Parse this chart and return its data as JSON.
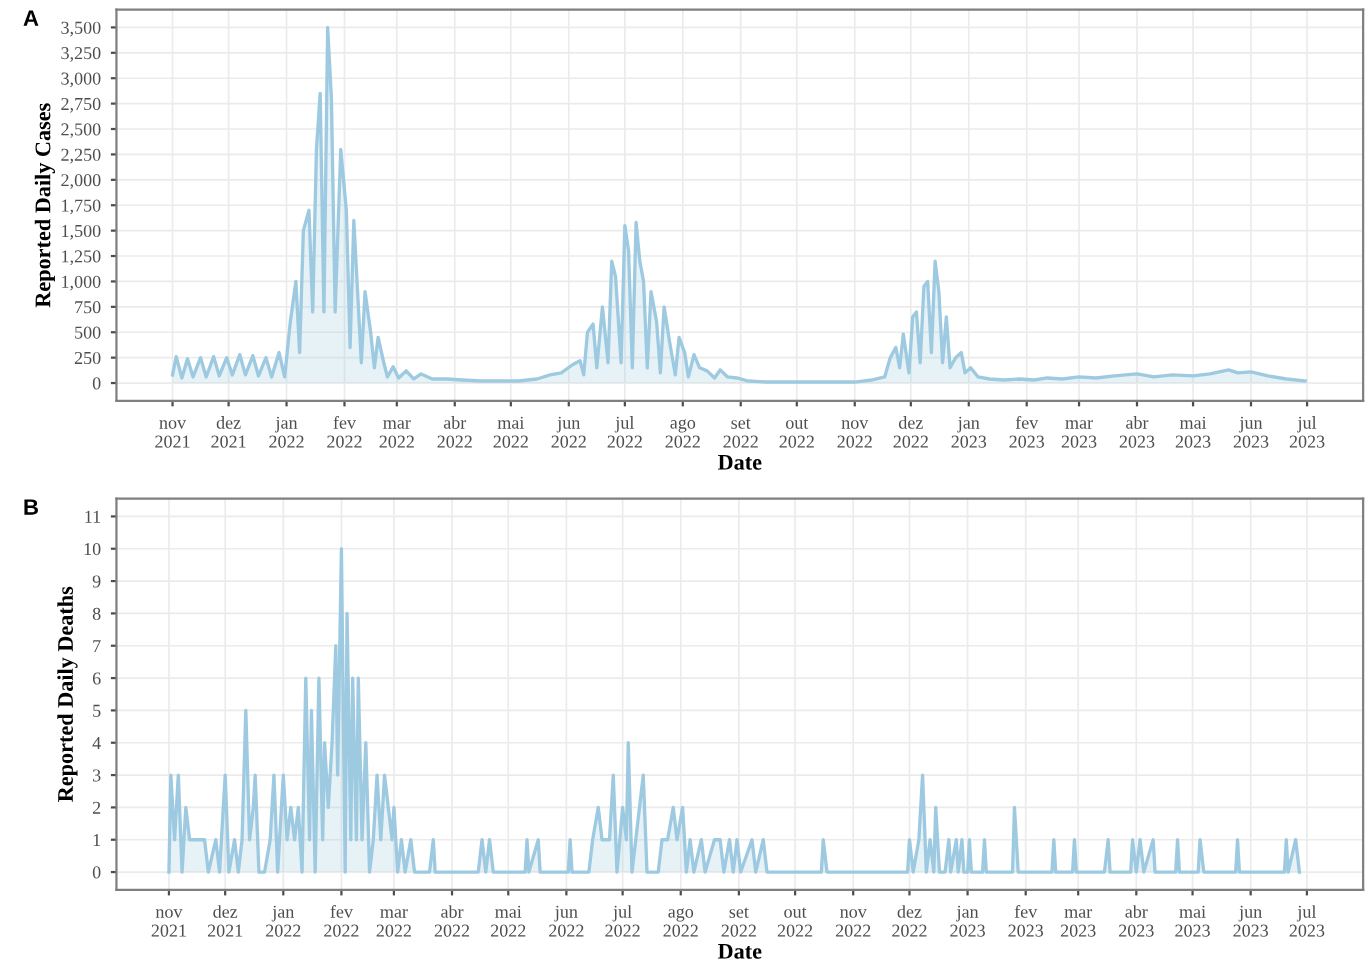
{
  "chart_data": [
    {
      "type": "area",
      "title": "A",
      "xlabel": "Date",
      "ylabel": "Reported Daily Cases",
      "grid": true,
      "xlim": [
        "2021-10-02",
        "2023-07-31"
      ],
      "ylim": [
        -175,
        3675
      ],
      "xticks": [
        {
          "value": "2021-11-01",
          "label": "nov\n2021"
        },
        {
          "value": "2021-12-01",
          "label": "dez\n2021"
        },
        {
          "value": "2022-01-01",
          "label": "jan\n2022"
        },
        {
          "value": "2022-02-01",
          "label": "fev\n2022"
        },
        {
          "value": "2022-03-01",
          "label": "mar\n2022"
        },
        {
          "value": "2022-04-01",
          "label": "abr\n2022"
        },
        {
          "value": "2022-05-01",
          "label": "mai\n2022"
        },
        {
          "value": "2022-06-01",
          "label": "jun\n2022"
        },
        {
          "value": "2022-07-01",
          "label": "jul\n2022"
        },
        {
          "value": "2022-08-01",
          "label": "ago\n2022"
        },
        {
          "value": "2022-09-01",
          "label": "set\n2022"
        },
        {
          "value": "2022-10-01",
          "label": "out\n2022"
        },
        {
          "value": "2022-11-01",
          "label": "nov\n2022"
        },
        {
          "value": "2022-12-01",
          "label": "dez\n2022"
        },
        {
          "value": "2023-01-01",
          "label": "jan\n2023"
        },
        {
          "value": "2023-02-01",
          "label": "fev\n2023"
        },
        {
          "value": "2023-03-01",
          "label": "mar\n2023"
        },
        {
          "value": "2023-04-01",
          "label": "abr\n2023"
        },
        {
          "value": "2023-05-01",
          "label": "mai\n2023"
        },
        {
          "value": "2023-06-01",
          "label": "jun\n2023"
        },
        {
          "value": "2023-07-01",
          "label": "jul\n2023"
        }
      ],
      "yticks": [
        0,
        250,
        500,
        750,
        {
          "value": 1000,
          "label": "1,000"
        },
        {
          "value": 1250,
          "label": "1,250"
        },
        {
          "value": 1500,
          "label": "1,500"
        },
        {
          "value": 1750,
          "label": "1,750"
        },
        {
          "value": 2000,
          "label": "2,000"
        },
        {
          "value": 2250,
          "label": "2,250"
        },
        {
          "value": 2500,
          "label": "2,500"
        },
        {
          "value": 2750,
          "label": "2,750"
        },
        {
          "value": 3000,
          "label": "3,000"
        },
        {
          "value": 3250,
          "label": "3,250"
        },
        {
          "value": 3500,
          "label": "3,500"
        }
      ],
      "series": [
        {
          "color": "#9ecae1",
          "x": [
            "2021-11-01",
            "2021-11-03",
            "2021-11-06",
            "2021-11-09",
            "2021-11-12",
            "2021-11-16",
            "2021-11-19",
            "2021-11-23",
            "2021-11-26",
            "2021-11-30",
            "2021-12-03",
            "2021-12-07",
            "2021-12-10",
            "2021-12-14",
            "2021-12-17",
            "2021-12-21",
            "2021-12-24",
            "2021-12-28",
            "2021-12-31",
            "2022-01-03",
            "2022-01-06",
            "2022-01-08",
            "2022-01-10",
            "2022-01-13",
            "2022-01-15",
            "2022-01-17",
            "2022-01-19",
            "2022-01-21",
            "2022-01-23",
            "2022-01-25",
            "2022-01-27",
            "2022-01-30",
            "2022-02-02",
            "2022-02-04",
            "2022-02-06",
            "2022-02-08",
            "2022-02-10",
            "2022-02-12",
            "2022-02-15",
            "2022-02-17",
            "2022-02-19",
            "2022-02-22",
            "2022-02-24",
            "2022-02-27",
            "2022-03-02",
            "2022-03-06",
            "2022-03-10",
            "2022-03-14",
            "2022-03-20",
            "2022-03-28",
            "2022-04-05",
            "2022-04-15",
            "2022-04-25",
            "2022-05-05",
            "2022-05-15",
            "2022-05-22",
            "2022-05-28",
            "2022-06-03",
            "2022-06-07",
            "2022-06-09",
            "2022-06-11",
            "2022-06-14",
            "2022-06-16",
            "2022-06-19",
            "2022-06-22",
            "2022-06-24",
            "2022-06-26",
            "2022-06-29",
            "2022-07-01",
            "2022-07-03",
            "2022-07-05",
            "2022-07-07",
            "2022-07-09",
            "2022-07-11",
            "2022-07-13",
            "2022-07-15",
            "2022-07-18",
            "2022-07-20",
            "2022-07-22",
            "2022-07-25",
            "2022-07-28",
            "2022-07-30",
            "2022-08-02",
            "2022-08-04",
            "2022-08-07",
            "2022-08-10",
            "2022-08-14",
            "2022-08-18",
            "2022-08-21",
            "2022-08-25",
            "2022-08-30",
            "2022-09-05",
            "2022-09-15",
            "2022-10-01",
            "2022-10-15",
            "2022-11-01",
            "2022-11-10",
            "2022-11-17",
            "2022-11-20",
            "2022-11-23",
            "2022-11-25",
            "2022-11-27",
            "2022-11-30",
            "2022-12-02",
            "2022-12-04",
            "2022-12-06",
            "2022-12-08",
            "2022-12-10",
            "2022-12-12",
            "2022-12-14",
            "2022-12-16",
            "2022-12-18",
            "2022-12-20",
            "2022-12-22",
            "2022-12-25",
            "2022-12-28",
            "2022-12-30",
            "2023-01-02",
            "2023-01-06",
            "2023-01-12",
            "2023-01-20",
            "2023-01-28",
            "2023-02-05",
            "2023-02-12",
            "2023-02-20",
            "2023-03-01",
            "2023-03-10",
            "2023-03-20",
            "2023-04-01",
            "2023-04-10",
            "2023-04-20",
            "2023-05-01",
            "2023-05-10",
            "2023-05-20",
            "2023-05-25",
            "2023-06-01",
            "2023-06-10",
            "2023-06-20",
            "2023-06-30"
          ],
          "values": [
            80,
            260,
            50,
            240,
            60,
            250,
            60,
            260,
            70,
            250,
            80,
            280,
            80,
            270,
            70,
            250,
            60,
            300,
            60,
            600,
            1000,
            300,
            1500,
            1700,
            700,
            2300,
            2850,
            700,
            3500,
            2800,
            700,
            2300,
            1700,
            350,
            1600,
            900,
            200,
            900,
            500,
            150,
            450,
            200,
            60,
            160,
            50,
            120,
            40,
            90,
            40,
            40,
            30,
            20,
            20,
            20,
            40,
            80,
            100,
            180,
            220,
            80,
            500,
            580,
            150,
            750,
            200,
            1200,
            1050,
            200,
            1550,
            1300,
            150,
            1580,
            1200,
            1000,
            150,
            900,
            600,
            100,
            750,
            400,
            80,
            450,
            300,
            60,
            280,
            150,
            120,
            50,
            130,
            60,
            50,
            20,
            10,
            10,
            10,
            10,
            30,
            60,
            250,
            350,
            150,
            480,
            100,
            650,
            700,
            200,
            950,
            1000,
            300,
            1200,
            900,
            200,
            650,
            150,
            250,
            300,
            100,
            150,
            60,
            40,
            30,
            40,
            30,
            50,
            40,
            60,
            50,
            70,
            90,
            60,
            80,
            70,
            90,
            130,
            100,
            110,
            70,
            40,
            20
          ]
        }
      ]
    },
    {
      "type": "area",
      "title": "B",
      "xlabel": "Date",
      "ylabel": "Reported Daily Deaths",
      "grid": true,
      "xlim": [
        "2021-10-04",
        "2023-07-31"
      ],
      "ylim": [
        -0.55,
        11.55
      ],
      "xticks": [
        {
          "value": "2021-11-01",
          "label": "nov\n2021"
        },
        {
          "value": "2021-12-01",
          "label": "dez\n2021"
        },
        {
          "value": "2022-01-01",
          "label": "jan\n2022"
        },
        {
          "value": "2022-02-01",
          "label": "fev\n2022"
        },
        {
          "value": "2022-03-01",
          "label": "mar\n2022"
        },
        {
          "value": "2022-04-01",
          "label": "abr\n2022"
        },
        {
          "value": "2022-05-01",
          "label": "mai\n2022"
        },
        {
          "value": "2022-06-01",
          "label": "jun\n2022"
        },
        {
          "value": "2022-07-01",
          "label": "jul\n2022"
        },
        {
          "value": "2022-08-01",
          "label": "ago\n2022"
        },
        {
          "value": "2022-09-01",
          "label": "set\n2022"
        },
        {
          "value": "2022-10-01",
          "label": "out\n2022"
        },
        {
          "value": "2022-11-01",
          "label": "nov\n2022"
        },
        {
          "value": "2022-12-01",
          "label": "dez\n2022"
        },
        {
          "value": "2023-01-01",
          "label": "jan\n2023"
        },
        {
          "value": "2023-02-01",
          "label": "fev\n2023"
        },
        {
          "value": "2023-03-01",
          "label": "mar\n2023"
        },
        {
          "value": "2023-04-01",
          "label": "abr\n2023"
        },
        {
          "value": "2023-05-01",
          "label": "mai\n2023"
        },
        {
          "value": "2023-06-01",
          "label": "jun\n2023"
        },
        {
          "value": "2023-07-01",
          "label": "jul\n2023"
        }
      ],
      "yticks": [
        0,
        1,
        2,
        3,
        4,
        5,
        6,
        7,
        8,
        9,
        10,
        11
      ],
      "series": [
        {
          "color": "#9ecae1",
          "x": [
            "2021-11-01",
            "2021-11-02",
            "2021-11-04",
            "2021-11-06",
            "2021-11-08",
            "2021-11-10",
            "2021-11-12",
            "2021-11-20",
            "2021-11-22",
            "2021-11-26",
            "2021-11-28",
            "2021-12-01",
            "2021-12-03",
            "2021-12-06",
            "2021-12-08",
            "2021-12-10",
            "2021-12-12",
            "2021-12-14",
            "2021-12-16",
            "2021-12-17",
            "2021-12-19",
            "2021-12-22",
            "2021-12-25",
            "2021-12-27",
            "2021-12-29",
            "2022-01-01",
            "2022-01-03",
            "2022-01-05",
            "2022-01-07",
            "2022-01-09",
            "2022-01-11",
            "2022-01-13",
            "2022-01-15",
            "2022-01-16",
            "2022-01-18",
            "2022-01-20",
            "2022-01-22",
            "2022-01-23",
            "2022-01-25",
            "2022-01-27",
            "2022-01-29",
            "2022-01-30",
            "2022-02-01",
            "2022-02-03",
            "2022-02-04",
            "2022-02-06",
            "2022-02-07",
            "2022-02-09",
            "2022-02-10",
            "2022-02-12",
            "2022-02-14",
            "2022-02-16",
            "2022-02-18",
            "2022-02-20",
            "2022-02-22",
            "2022-02-24",
            "2022-02-26",
            "2022-02-28",
            "2022-03-01",
            "2022-03-03",
            "2022-03-05",
            "2022-03-07",
            "2022-03-10",
            "2022-03-12",
            "2022-03-20",
            "2022-03-22",
            "2022-03-23",
            "2022-04-15",
            "2022-04-17",
            "2022-04-19",
            "2022-04-21",
            "2022-04-23",
            "2022-05-10",
            "2022-05-11",
            "2022-05-12",
            "2022-05-17",
            "2022-05-18",
            "2022-06-02",
            "2022-06-03",
            "2022-06-04",
            "2022-06-13",
            "2022-06-15",
            "2022-06-18",
            "2022-06-20",
            "2022-06-24",
            "2022-06-26",
            "2022-06-28",
            "2022-07-01",
            "2022-07-03",
            "2022-07-04",
            "2022-07-06",
            "2022-07-08",
            "2022-07-12",
            "2022-07-14",
            "2022-07-20",
            "2022-07-22",
            "2022-07-25",
            "2022-07-28",
            "2022-07-30",
            "2022-08-02",
            "2022-08-04",
            "2022-08-06",
            "2022-08-08",
            "2022-08-12",
            "2022-08-14",
            "2022-08-19",
            "2022-08-22",
            "2022-08-24",
            "2022-08-27",
            "2022-08-29",
            "2022-08-31",
            "2022-09-02",
            "2022-09-08",
            "2022-09-10",
            "2022-09-14",
            "2022-09-16",
            "2022-10-15",
            "2022-10-16",
            "2022-10-18",
            "2022-11-30",
            "2022-12-01",
            "2022-12-03",
            "2022-12-06",
            "2022-12-08",
            "2022-12-10",
            "2022-12-12",
            "2022-12-14",
            "2022-12-15",
            "2022-12-17",
            "2022-12-20",
            "2022-12-22",
            "2022-12-23",
            "2022-12-26",
            "2022-12-27",
            "2022-12-29",
            "2022-12-30",
            "2023-01-01",
            "2023-01-02",
            "2023-01-03",
            "2023-01-09",
            "2023-01-10",
            "2023-01-11",
            "2023-01-25",
            "2023-01-26",
            "2023-01-28",
            "2023-02-15",
            "2023-02-16",
            "2023-02-17",
            "2023-02-26",
            "2023-02-27",
            "2023-02-28",
            "2023-03-15",
            "2023-03-17",
            "2023-03-18",
            "2023-03-29",
            "2023-03-30",
            "2023-04-01",
            "2023-04-03",
            "2023-04-05",
            "2023-04-10",
            "2023-04-11",
            "2023-04-22",
            "2023-04-23",
            "2023-04-24",
            "2023-05-04",
            "2023-05-05",
            "2023-05-07",
            "2023-05-24",
            "2023-05-25",
            "2023-05-26",
            "2023-06-19",
            "2023-06-20",
            "2023-06-21",
            "2023-06-25",
            "2023-06-27"
          ],
          "values": [
            0,
            3,
            1,
            3,
            0,
            2,
            1,
            1,
            0,
            1,
            0,
            3,
            0,
            1,
            0,
            1,
            5,
            1,
            2,
            3,
            0,
            0,
            1,
            3,
            0,
            3,
            1,
            2,
            1,
            2,
            0,
            6,
            1,
            5,
            0,
            6,
            1,
            4,
            2,
            4,
            7,
            3,
            10,
            0,
            8,
            1,
            6,
            1,
            6,
            1,
            4,
            0,
            1,
            3,
            1,
            3,
            2,
            1,
            2,
            0,
            1,
            0,
            1,
            0,
            0,
            1,
            0,
            0,
            1,
            0,
            1,
            0,
            0,
            1,
            0,
            1,
            0,
            0,
            1,
            0,
            0,
            1,
            2,
            1,
            1,
            3,
            0,
            2,
            1,
            4,
            0,
            1,
            3,
            0,
            0,
            1,
            1,
            2,
            1,
            2,
            0,
            1,
            0,
            1,
            0,
            1,
            1,
            0,
            1,
            0,
            1,
            0,
            1,
            0,
            1,
            0,
            0,
            1,
            0,
            0,
            1,
            0,
            1,
            3,
            0,
            1,
            0,
            2,
            0,
            0,
            1,
            0,
            1,
            0,
            1,
            0,
            0,
            1,
            0,
            0,
            1,
            0,
            0,
            2,
            0,
            0,
            1,
            0,
            0,
            1,
            0,
            0,
            1,
            0,
            0,
            1,
            0,
            1,
            0,
            1,
            0,
            0,
            1,
            0,
            0,
            1,
            0,
            0,
            1,
            0,
            0,
            1,
            0,
            1,
            0
          ]
        }
      ]
    }
  ]
}
